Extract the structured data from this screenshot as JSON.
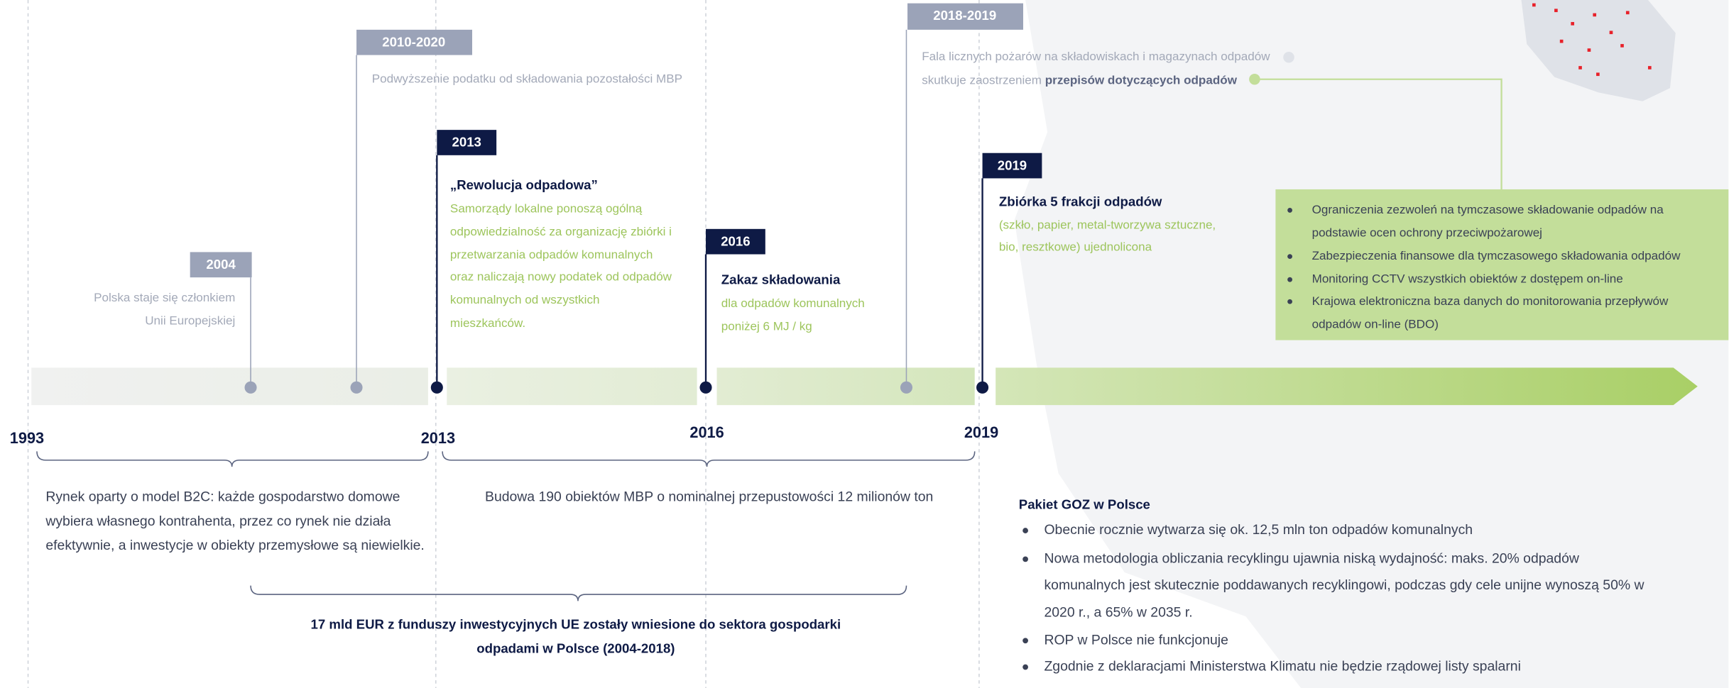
{
  "years": [
    "1993",
    "2013",
    "2016",
    "2019"
  ],
  "events": [
    {
      "label": "2004",
      "lines": [
        "Polska staje się członkiem",
        "Unii Europejskiej"
      ]
    },
    {
      "label": "2010-2020",
      "lines": [
        "Podwyższenie podatku od składowania pozostałości MBP"
      ]
    },
    {
      "label": "2013",
      "title": "„Rewolucja odpadowa”",
      "lines": [
        "Samorządy lokalne ponoszą ogólną",
        "odpowiedzialność za organizację zbiórki i",
        "przetwarzania odpadów komunalnych",
        "oraz naliczają nowy podatek od odpadów",
        "komunalnych od wszystkich",
        "mieszkańców."
      ]
    },
    {
      "label": "2016",
      "title": "Zakaz składowania",
      "lines": [
        "dla odpadów komunalnych",
        "poniżej 6 MJ / kg"
      ]
    },
    {
      "label": "2018-2019",
      "lines": [
        "Fala licznych pożarów na składowiskach i magazynach odpadów",
        "skutkuje zaostrzeniem"
      ],
      "bold": "przepisów dotyczących odpadów"
    },
    {
      "label": "2019",
      "title": "Zbiórka 5 frakcji odpadów",
      "lines": [
        "(szkło, papier, metal-tworzywa sztuczne,",
        "bio, resztkowe) ujednolicona"
      ]
    }
  ],
  "measures": [
    [
      "Ograniczenia zezwoleń na tymczasowe składowanie odpadów na",
      "podstawie ocen ochrony przeciwpożarowej"
    ],
    [
      "Zabezpieczenia finansowe dla tymczasowego składowania odpadów"
    ],
    [
      "Monitoring CCTV wszystkich obiektów z dostępem on-line"
    ],
    [
      "Krajowa elektroniczna baza danych do monitorowania przepływów",
      "odpadów on-line (BDO)"
    ]
  ],
  "periods": [
    {
      "lines": [
        "Rynek oparty o model B2C: każde gospodarstwo domowe",
        "wybiera własnego kontrahenta, przez co rynek nie działa",
        "efektywnie, a inwestycje w obiekty przemysłowe są niewielkie."
      ]
    },
    {
      "lines": [
        "Budowa 190 obiektów MBP o nominalnej przepustowości 12 milionów ton"
      ]
    },
    {
      "lines": [
        "17 mld EUR z funduszy inwestycyjnych UE zostały wniesione do sektora gospodarki",
        "odpadami w Polsce (2004-2018)"
      ]
    }
  ],
  "package": {
    "title": "Pakiet GOZ w Polsce",
    "items": [
      [
        "Obecnie rocznie wytwarza się ok. 12,5 mln ton odpadów komunalnych"
      ],
      [
        "Nowa metodologia obliczania recyklingu ujawnia niską wydajność: maks. 20% odpadów",
        "komunalnych jest skutecznie poddawanych recyklingowi, podczas gdy cele unijne wynoszą 50% w",
        "2020 r., a 65% w 2035 r."
      ],
      [
        "ROP w Polsce nie funkcjonuje"
      ],
      [
        "Zgodnie z deklaracjami Ministerstwa Klimatu nie będzie rządowej listy spalarni"
      ]
    ]
  }
}
